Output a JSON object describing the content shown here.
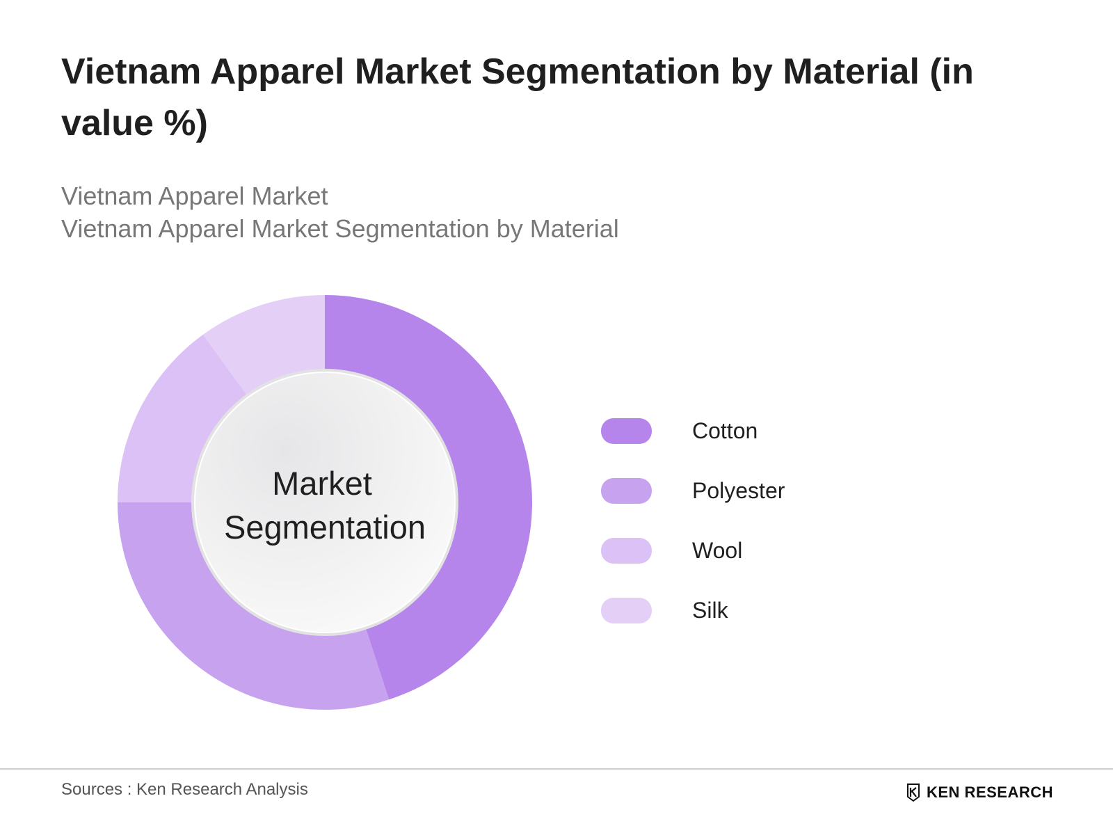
{
  "header": {
    "title": "Vietnam Apparel Market Segmentation by Material (in value %)",
    "subtitle_line1": "Vietnam Apparel Market",
    "subtitle_line2": "Vietnam Apparel Market Segmentation by Material"
  },
  "chart_data": {
    "type": "pie",
    "center_label_line1": "Market",
    "center_label_line2": "Segmentation",
    "legend_position": "right",
    "categories": [
      "Cotton",
      "Polyester",
      "Wool",
      "Silk"
    ],
    "values": [
      45,
      30,
      15,
      10
    ],
    "colors": [
      "#b585ec",
      "#c7a2ef",
      "#dbc1f5",
      "#e4cff7"
    ]
  },
  "footer": {
    "source": "Sources : Ken Research Analysis",
    "logo_text": "KEN RESEARCH"
  }
}
